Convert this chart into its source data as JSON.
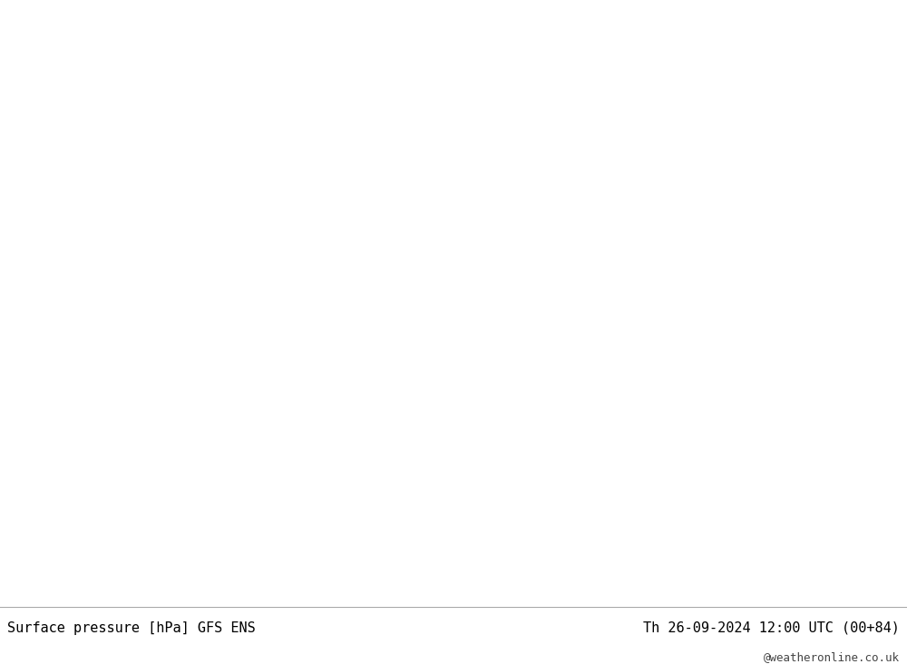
{
  "title_left": "Surface pressure [hPa] GFS ENS",
  "title_right": "Th 26-09-2024 12:00 UTC (00+84)",
  "watermark": "@weatheronline.co.uk",
  "bg_color": "#d8d8d8",
  "land_color": "#b8d4a0",
  "ocean_color": "#d8d8d8",
  "lake_color": "#d8d8d8",
  "contour_low_color": "#0000cc",
  "contour_high_color": "#cc0000",
  "contour_1013_color": "#000000",
  "contour_linewidth_low": 1.1,
  "contour_linewidth_high": 1.1,
  "contour_linewidth_1013": 2.0,
  "label_fontsize": 7.5,
  "footer_fontsize": 11,
  "watermark_fontsize": 9,
  "footer_bg": "#e8e8e8",
  "extent": [
    -178,
    -48,
    18,
    88
  ]
}
